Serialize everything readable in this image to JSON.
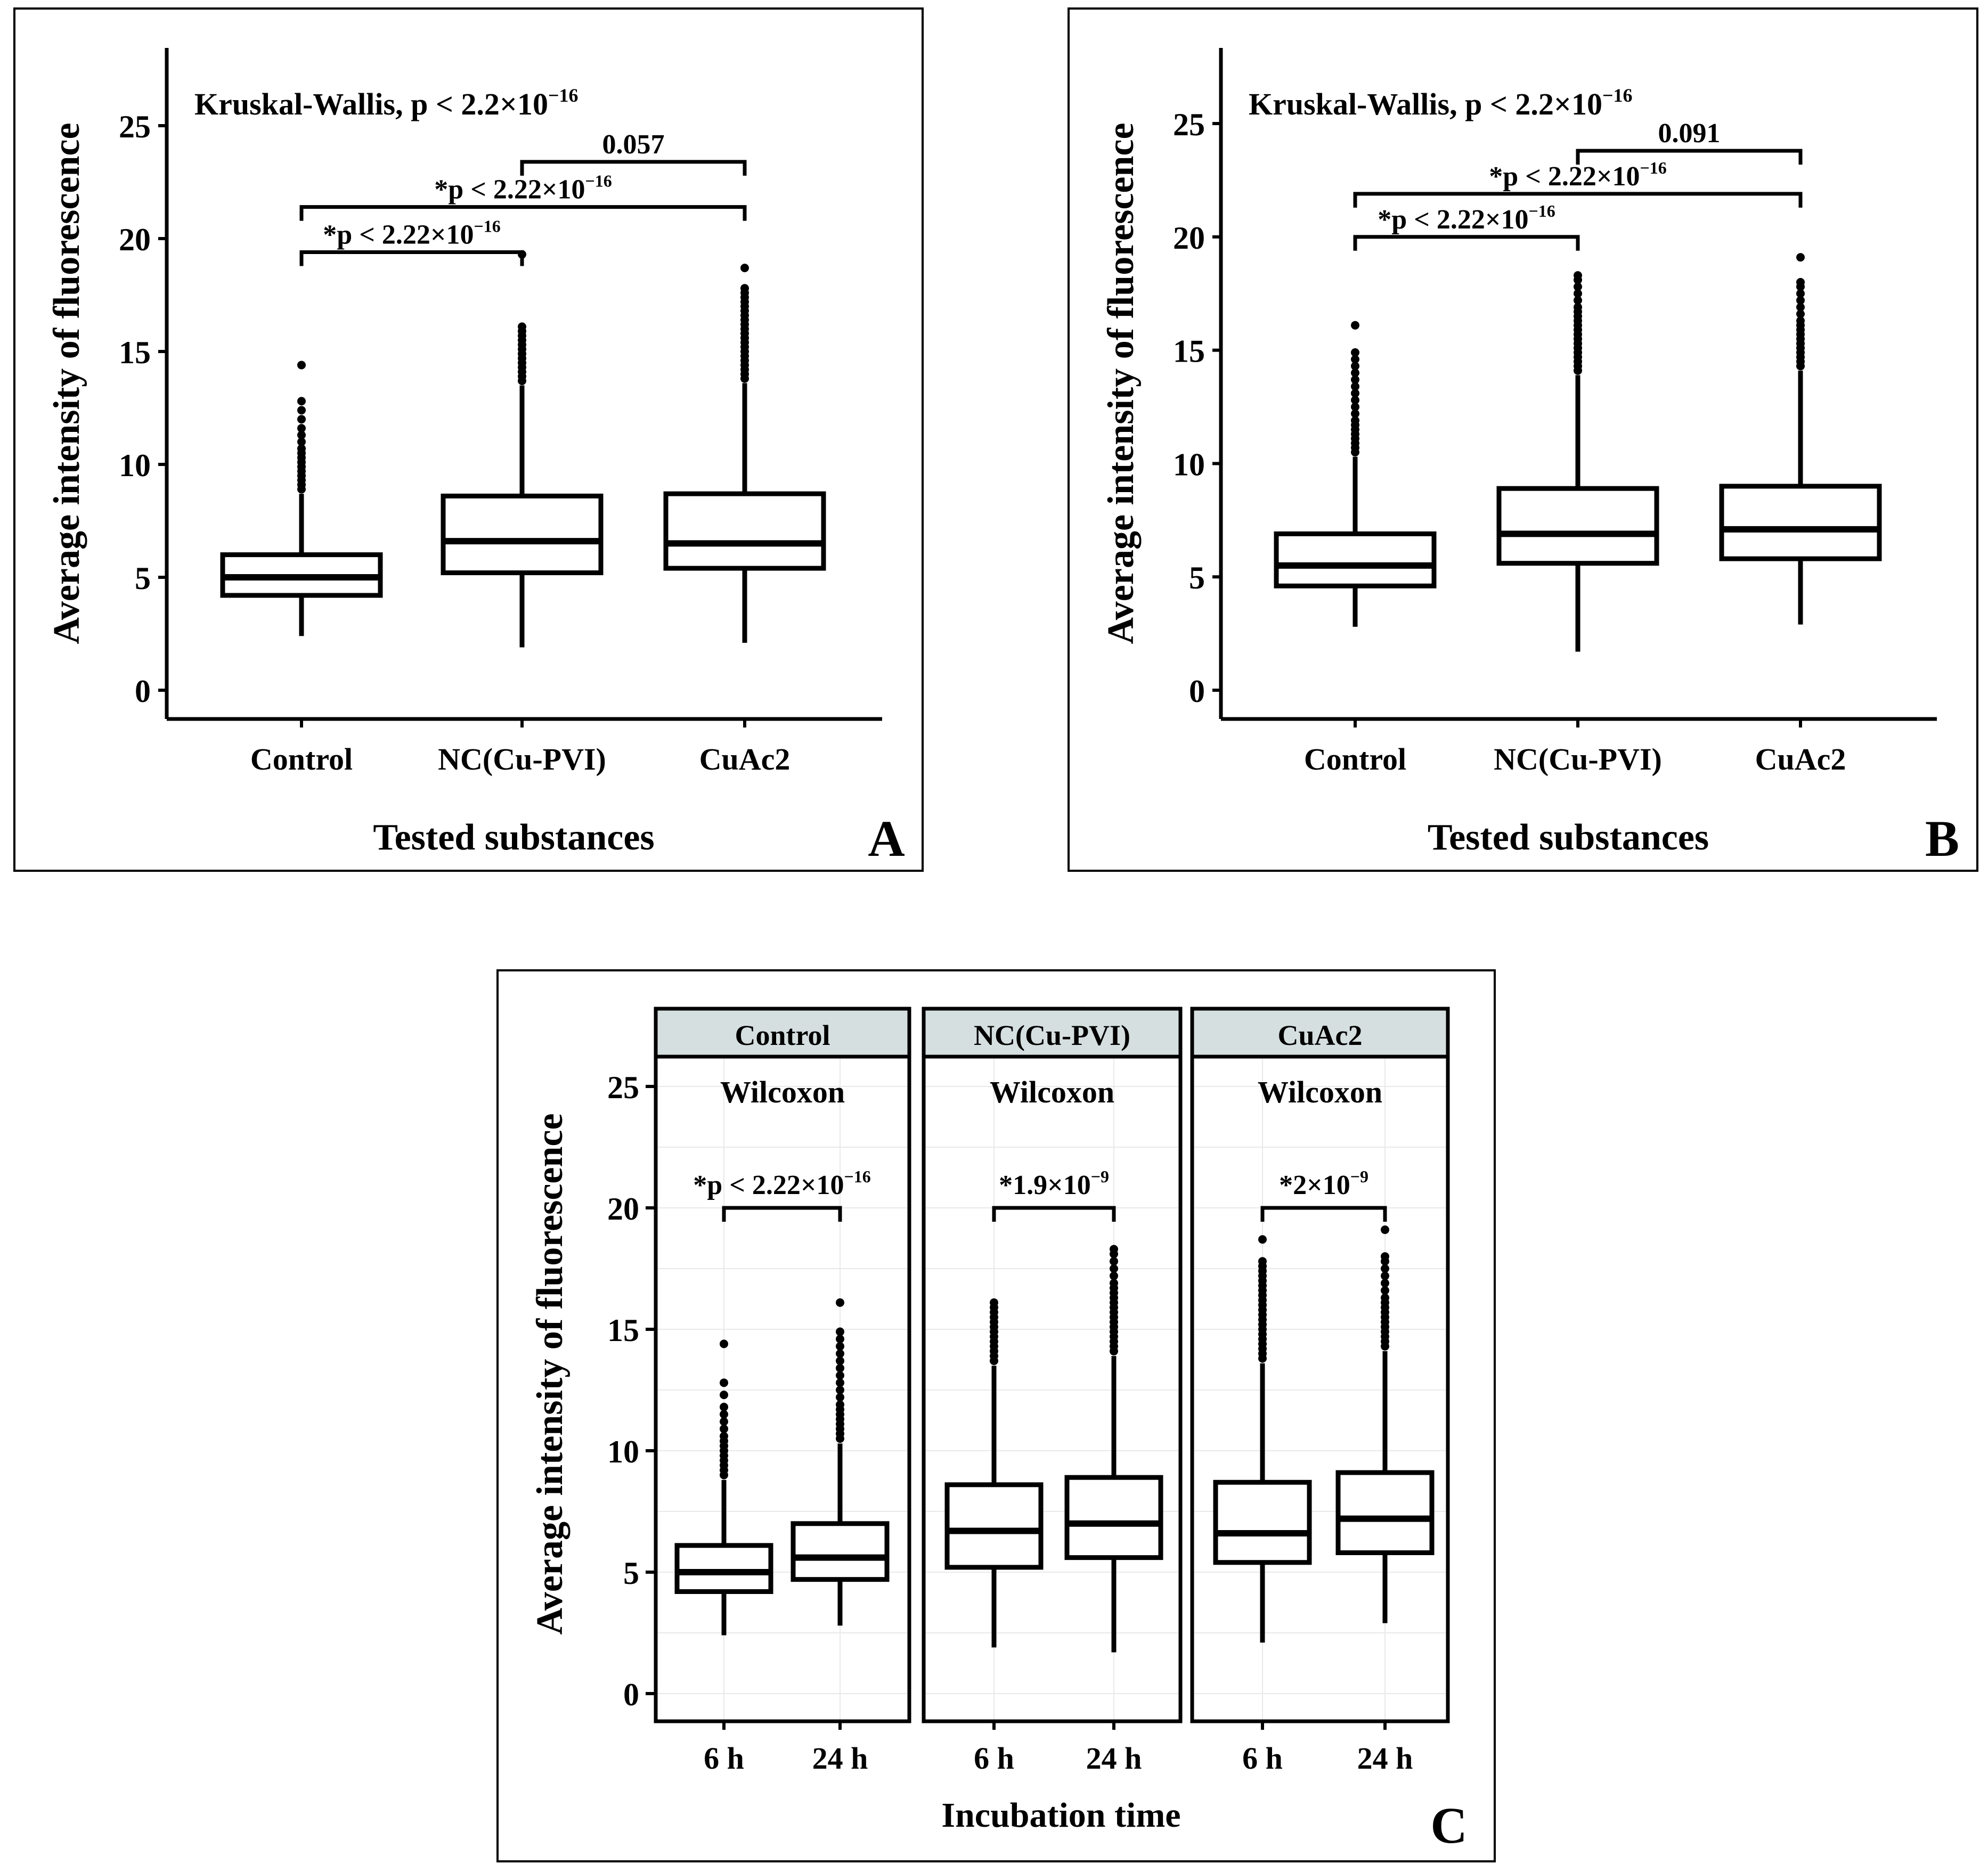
{
  "panels": [
    {
      "id": "A",
      "letter": "A",
      "test_label": "Kruskal-Wallis, p < 2.2×10",
      "test_exp": "−16",
      "ylabel": "Average intensity of fluorescence",
      "xlabel": "Tested substances",
      "yticks": [
        "0",
        "5",
        "10",
        "15",
        "20",
        "25"
      ],
      "categories": [
        "Control",
        "NC(Cu-PVI)",
        "CuAc2"
      ],
      "comparisons": [
        {
          "from": 0,
          "to": 1,
          "y": 19.4,
          "label": "*p < 2.22×10",
          "exp": "−16"
        },
        {
          "from": 0,
          "to": 2,
          "y": 21.4,
          "label": "*p < 2.22×10",
          "exp": "−16"
        },
        {
          "from": 1,
          "to": 2,
          "y": 23.4,
          "label": "0.057",
          "exp": ""
        }
      ]
    },
    {
      "id": "B",
      "letter": "B",
      "test_label": "Kruskal-Wallis, p < 2.2×10",
      "test_exp": "−16",
      "ylabel": "Average intensity of fluorescence",
      "xlabel": "Tested substances",
      "yticks": [
        "0",
        "5",
        "10",
        "15",
        "20",
        "25"
      ],
      "categories": [
        "Control",
        "NC(Cu-PVI)",
        "CuAc2"
      ],
      "comparisons": [
        {
          "from": 0,
          "to": 1,
          "y": 20.0,
          "label": "*p < 2.22×10",
          "exp": "−16"
        },
        {
          "from": 0,
          "to": 2,
          "y": 21.9,
          "label": "*p < 2.22×10",
          "exp": "−16"
        },
        {
          "from": 1,
          "to": 2,
          "y": 23.8,
          "label": "0.091",
          "exp": ""
        }
      ]
    },
    {
      "id": "C",
      "letter": "C",
      "ylabel": "Average intensity of fluorescence",
      "xlabel": "Incubation time",
      "yticks": [
        "0",
        "5",
        "10",
        "15",
        "20",
        "25"
      ],
      "facets": [
        {
          "title": "Control",
          "test": "Wilcoxon",
          "sig_label": "*p < 2.22×10",
          "sig_exp": "−16",
          "sig_y": 20.0
        },
        {
          "title": "NC(Cu-PVI)",
          "test": "Wilcoxon",
          "sig_label": "*1.9×10",
          "sig_exp": "−9",
          "sig_y": 20.0
        },
        {
          "title": "CuAc2",
          "test": "Wilcoxon",
          "sig_label": "*2×10",
          "sig_exp": "−9",
          "sig_y": 20.0
        }
      ],
      "categories": [
        "6 h",
        "24 h"
      ]
    }
  ],
  "chart_data": [
    {
      "type": "box",
      "title": "Kruskal-Wallis, p < 2.2×10^-16",
      "panel": "A",
      "xlabel": "Tested substances",
      "ylabel": "Average intensity of fluorescence",
      "ylim": [
        -1.2,
        28
      ],
      "categories": [
        "Control",
        "NC(Cu-PVI)",
        "CuAc2"
      ],
      "series": [
        {
          "name": "Control",
          "min": 2.4,
          "q1": 4.2,
          "median": 5.0,
          "q3": 6.0,
          "max": 8.7,
          "outliers": [
            8.9,
            9.1,
            9.3,
            9.5,
            9.7,
            9.9,
            10.1,
            10.3,
            10.5,
            10.7,
            11.0,
            11.3,
            11.6,
            12.0,
            12.4,
            12.8,
            14.4
          ]
        },
        {
          "name": "NC(Cu-PVI)",
          "min": 1.9,
          "q1": 5.2,
          "median": 6.6,
          "q3": 8.6,
          "max": 13.5,
          "outliers": [
            13.7,
            13.9,
            14.1,
            14.3,
            14.5,
            14.7,
            14.9,
            15.1,
            15.3,
            15.5,
            15.7,
            15.9,
            16.1,
            19.3
          ]
        },
        {
          "name": "CuAc2",
          "min": 2.1,
          "q1": 5.4,
          "median": 6.5,
          "q3": 8.7,
          "max": 13.6,
          "outliers": [
            13.8,
            14.0,
            14.2,
            14.4,
            14.6,
            14.8,
            15.0,
            15.2,
            15.4,
            15.6,
            15.8,
            16.0,
            16.2,
            16.4,
            16.6,
            16.8,
            17.0,
            17.2,
            17.4,
            17.6,
            17.8,
            18.7
          ]
        }
      ]
    },
    {
      "type": "box",
      "title": "Kruskal-Wallis, p < 2.2×10^-16",
      "panel": "B",
      "xlabel": "Tested substances",
      "ylabel": "Average intensity of fluorescence",
      "ylim": [
        -1.2,
        28
      ],
      "categories": [
        "Control",
        "NC(Cu-PVI)",
        "CuAc2"
      ],
      "series": [
        {
          "name": "Control",
          "min": 2.8,
          "q1": 4.6,
          "median": 5.5,
          "q3": 6.9,
          "max": 10.3,
          "outliers": [
            10.5,
            10.7,
            10.9,
            11.1,
            11.3,
            11.5,
            11.7,
            11.9,
            12.2,
            12.5,
            12.8,
            13.1,
            13.4,
            13.7,
            14.0,
            14.3,
            14.6,
            14.9,
            16.1
          ]
        },
        {
          "name": "NC(Cu-PVI)",
          "min": 1.7,
          "q1": 5.6,
          "median": 6.9,
          "q3": 8.9,
          "max": 13.9,
          "outliers": [
            14.1,
            14.3,
            14.5,
            14.7,
            14.9,
            15.1,
            15.3,
            15.5,
            15.7,
            15.9,
            16.1,
            16.3,
            16.5,
            16.7,
            16.9,
            17.2,
            17.5,
            17.8,
            18.1,
            18.3
          ]
        },
        {
          "name": "CuAc2",
          "min": 2.9,
          "q1": 5.8,
          "median": 7.1,
          "q3": 9.0,
          "max": 14.1,
          "outliers": [
            14.3,
            14.5,
            14.7,
            14.9,
            15.1,
            15.3,
            15.5,
            15.7,
            15.9,
            16.1,
            16.3,
            16.6,
            16.9,
            17.2,
            17.5,
            17.8,
            18.0,
            19.1
          ]
        }
      ]
    },
    {
      "type": "box",
      "title": "Wilcoxon",
      "panel": "C",
      "xlabel": "Incubation time",
      "ylabel": "Average intensity of fluorescence",
      "ylim": [
        -1.2,
        27
      ],
      "facets": [
        "Control",
        "NC(Cu-PVI)",
        "CuAc2"
      ],
      "categories": [
        "6 h",
        "24 h"
      ],
      "series": [
        {
          "facet": "Control",
          "name": "6 h",
          "min": 2.4,
          "q1": 4.2,
          "median": 5.0,
          "q3": 6.1,
          "max": 8.8,
          "outliers": [
            9.0,
            9.2,
            9.4,
            9.6,
            9.8,
            10.0,
            10.2,
            10.4,
            10.6,
            10.9,
            11.2,
            11.5,
            11.8,
            12.3,
            12.8,
            14.4
          ]
        },
        {
          "facet": "Control",
          "name": "24 h",
          "min": 2.8,
          "q1": 4.7,
          "median": 5.6,
          "q3": 7.0,
          "max": 10.3,
          "outliers": [
            10.5,
            10.7,
            10.9,
            11.1,
            11.3,
            11.5,
            11.7,
            11.9,
            12.2,
            12.5,
            12.8,
            13.1,
            13.4,
            13.7,
            14.0,
            14.3,
            14.6,
            14.9,
            16.1
          ]
        },
        {
          "facet": "NC(Cu-PVI)",
          "name": "6 h",
          "min": 1.9,
          "q1": 5.2,
          "median": 6.7,
          "q3": 8.6,
          "max": 13.5,
          "outliers": [
            13.7,
            13.9,
            14.1,
            14.3,
            14.5,
            14.7,
            14.9,
            15.1,
            15.3,
            15.5,
            15.7,
            15.9,
            16.1
          ]
        },
        {
          "facet": "NC(Cu-PVI)",
          "name": "24 h",
          "min": 1.7,
          "q1": 5.6,
          "median": 7.0,
          "q3": 8.9,
          "max": 13.9,
          "outliers": [
            14.1,
            14.3,
            14.5,
            14.7,
            14.9,
            15.1,
            15.3,
            15.5,
            15.7,
            15.9,
            16.1,
            16.3,
            16.5,
            16.7,
            16.9,
            17.2,
            17.5,
            17.8,
            18.1,
            18.3
          ]
        },
        {
          "facet": "CuAc2",
          "name": "6 h",
          "min": 2.1,
          "q1": 5.4,
          "median": 6.6,
          "q3": 8.7,
          "max": 13.6,
          "outliers": [
            13.8,
            14.0,
            14.2,
            14.4,
            14.6,
            14.8,
            15.0,
            15.2,
            15.4,
            15.6,
            15.8,
            16.0,
            16.2,
            16.4,
            16.6,
            16.8,
            17.0,
            17.2,
            17.4,
            17.6,
            17.8,
            18.7
          ]
        },
        {
          "facet": "CuAc2",
          "name": "24 h",
          "min": 2.9,
          "q1": 5.8,
          "median": 7.2,
          "q3": 9.1,
          "max": 14.1,
          "outliers": [
            14.3,
            14.5,
            14.7,
            14.9,
            15.1,
            15.3,
            15.5,
            15.7,
            15.9,
            16.1,
            16.3,
            16.6,
            16.9,
            17.2,
            17.5,
            17.8,
            18.0,
            19.1
          ]
        }
      ]
    }
  ]
}
